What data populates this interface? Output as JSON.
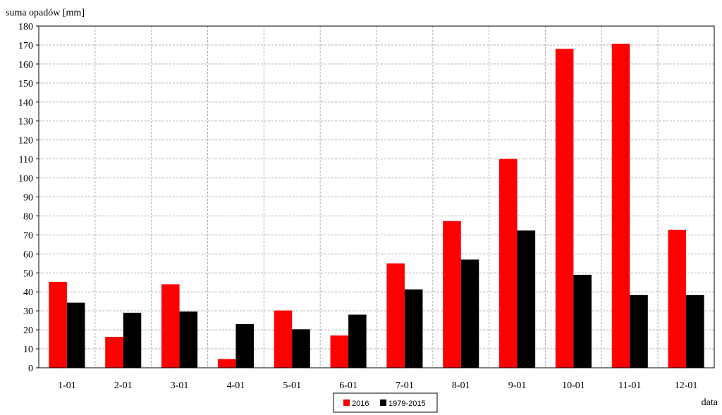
{
  "chart_data": {
    "type": "bar",
    "title": "",
    "ylabel": "suma opadów [mm]",
    "xlabel": "data",
    "ylim": [
      0,
      180
    ],
    "yticks": [
      0,
      10,
      20,
      30,
      40,
      50,
      60,
      70,
      80,
      90,
      100,
      110,
      120,
      130,
      140,
      150,
      160,
      170,
      180
    ],
    "categories": [
      "1-01",
      "2-01",
      "3-01",
      "4-01",
      "5-01",
      "6-01",
      "7-01",
      "8-01",
      "9-01",
      "10-01",
      "11-01",
      "12-01"
    ],
    "series": [
      {
        "name": "2016",
        "color": "#ff0000",
        "values": [
          45.3,
          16.3,
          44,
          4.6,
          30.2,
          17,
          55,
          77.3,
          110,
          168,
          170.7,
          72.7
        ]
      },
      {
        "name": "1979-2015",
        "color": "#000000",
        "values": [
          34.3,
          29,
          29.6,
          23,
          20.3,
          28,
          41.3,
          57,
          72.3,
          49,
          38.3,
          38.3
        ]
      }
    ],
    "grid": true,
    "legend_position": "bottom-center"
  }
}
